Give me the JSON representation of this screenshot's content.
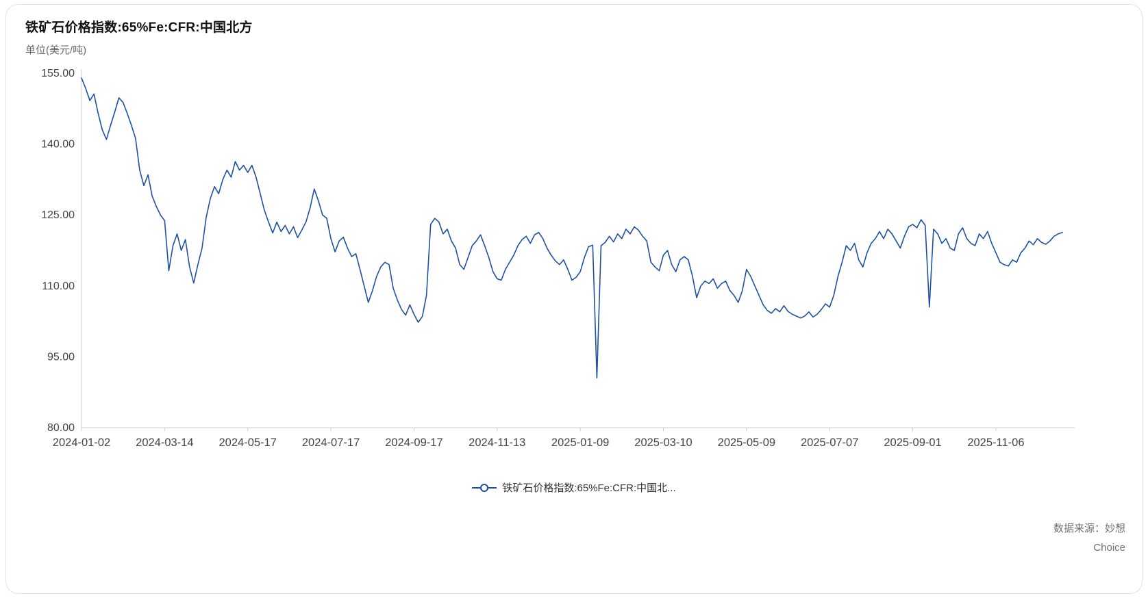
{
  "card": {
    "title": "铁矿石价格指数:65%Fe:CFR:中国北方",
    "unit_label": "单位(美元/吨)",
    "source_line1": "数据来源：妙想",
    "source_line2": "Choice"
  },
  "legend": {
    "label": "铁矿石价格指数:65%Fe:CFR:中国北..."
  },
  "colors": {
    "line": "#1e50a2",
    "axis": "#cccccc",
    "tick_text": "#444444"
  },
  "chart_data": {
    "type": "line",
    "title": "铁矿石价格指数:65%Fe:CFR:中国北方",
    "ylabel": "单位(美元/吨)",
    "ylim": [
      80,
      155
    ],
    "y_ticks": [
      "155.00",
      "140.00",
      "125.00",
      "110.00",
      "95.00",
      "80.00"
    ],
    "y_tick_values": [
      155,
      140,
      125,
      110,
      95,
      80
    ],
    "x_tick_labels": [
      "2024-01-02",
      "2024-03-14",
      "2024-05-17",
      "2024-07-17",
      "2024-09-17",
      "2024-11-13",
      "2025-01-09",
      "2025-03-10",
      "2025-05-09",
      "2025-07-07",
      "2025-09-01",
      "2025-11-06"
    ],
    "x_tick_indices": [
      0,
      20,
      40,
      60,
      80,
      100,
      120,
      140,
      160,
      180,
      200,
      220
    ],
    "grid": false,
    "legend_position": "bottom",
    "series": [
      {
        "name": "铁矿石价格指数:65%Fe:CFR:中国北...",
        "color": "#1e50a2",
        "values": [
          154.0,
          151.8,
          149.2,
          150.6,
          146.5,
          143.0,
          141.0,
          144.0,
          146.8,
          149.8,
          148.8,
          146.5,
          144.0,
          141.2,
          134.5,
          131.2,
          133.5,
          129.0,
          126.8,
          125.0,
          123.8,
          113.2,
          118.5,
          121.0,
          117.5,
          119.8,
          114.0,
          110.6,
          114.5,
          118.0,
          124.5,
          128.5,
          131.0,
          129.5,
          132.5,
          134.5,
          133.0,
          136.3,
          134.5,
          135.5,
          134.0,
          135.5,
          133.0,
          129.5,
          126.0,
          123.5,
          121.2,
          123.5,
          121.5,
          122.8,
          121.0,
          122.5,
          120.2,
          121.8,
          123.5,
          126.5,
          130.5,
          128.0,
          125.0,
          124.3,
          120.0,
          117.2,
          119.5,
          120.3,
          118.0,
          116.2,
          116.8,
          113.5,
          110.0,
          106.5,
          109.0,
          112.0,
          114.0,
          115.0,
          114.5,
          109.5,
          107.0,
          105.0,
          103.8,
          106.0,
          104.0,
          102.3,
          103.5,
          108.0,
          123.0,
          124.3,
          123.5,
          121.0,
          122.0,
          119.5,
          118.0,
          114.5,
          113.5,
          116.0,
          118.5,
          119.5,
          120.8,
          118.5,
          116.0,
          113.0,
          111.5,
          111.2,
          113.5,
          115.0,
          116.5,
          118.5,
          119.8,
          120.5,
          119.0,
          120.8,
          121.3,
          120.0,
          118.0,
          116.5,
          115.3,
          114.5,
          115.5,
          113.5,
          111.2,
          111.8,
          113.0,
          116.0,
          118.3,
          118.6,
          90.5,
          118.5,
          119.2,
          120.5,
          119.3,
          121.0,
          120.0,
          122.0,
          121.0,
          122.5,
          121.8,
          120.5,
          119.5,
          115.0,
          114.0,
          113.2,
          116.5,
          117.5,
          114.5,
          113.0,
          115.5,
          116.2,
          115.5,
          112.0,
          107.5,
          110.0,
          111.0,
          110.5,
          111.5,
          109.5,
          110.5,
          111.0,
          109.0,
          108.0,
          106.5,
          109.0,
          113.5,
          112.0,
          110.0,
          108.0,
          106.0,
          104.8,
          104.2,
          105.2,
          104.5,
          105.8,
          104.6,
          104.0,
          103.6,
          103.2,
          103.6,
          104.5,
          103.4,
          104.0,
          105.0,
          106.2,
          105.5,
          108.0,
          112.0,
          115.0,
          118.5,
          117.5,
          119.0,
          115.5,
          114.0,
          117.0,
          119.0,
          120.0,
          121.5,
          120.0,
          122.0,
          121.0,
          119.5,
          118.0,
          120.5,
          122.5,
          123.0,
          122.3,
          124.0,
          122.8,
          105.5,
          122.0,
          121.0,
          119.0,
          120.0,
          118.0,
          117.5,
          121.0,
          122.3,
          120.0,
          119.0,
          118.5,
          121.0,
          120.0,
          121.5,
          119.0,
          117.0,
          115.0,
          114.5,
          114.2,
          115.5,
          115.0,
          117.0,
          118.0,
          119.5,
          118.7,
          120.0,
          119.2,
          118.8,
          119.5,
          120.5,
          121.0,
          121.3
        ]
      }
    ]
  }
}
